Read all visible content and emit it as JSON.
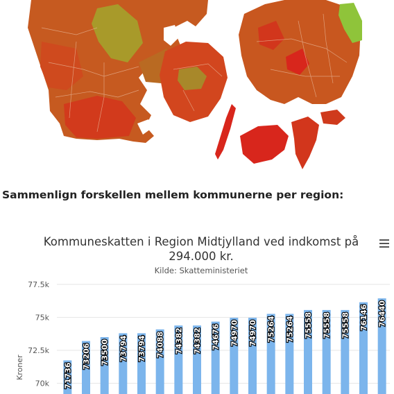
{
  "section": {
    "heading": "Sammenlign forskellen mellem kommunerne per region:"
  },
  "map": {
    "colors": {
      "red": "#d8261c",
      "orange_red": "#d2461e",
      "orange": "#c8571f",
      "brown": "#b96a22",
      "olive": "#a89a2a",
      "green": "#8fc43a",
      "water": "#ffffff"
    }
  },
  "chart_data": {
    "type": "bar",
    "title": "Kommuneskatten i Region Midtjylland ved indkomst på 294.000 kr.",
    "subtitle": "Kilde: Skatteministeriet",
    "ylabel": "Kroner",
    "ylim": [
      69500,
      78500
    ],
    "yticks": [
      "70k",
      "72.5k",
      "75k",
      "77.5k"
    ],
    "ytick_values": [
      70000,
      72500,
      75000,
      77500
    ],
    "values": [
      71736,
      73206,
      73500,
      73794,
      73794,
      74088,
      74382,
      74382,
      74676,
      74970,
      74970,
      75264,
      75264,
      75558,
      75558,
      75558,
      76146,
      76440
    ],
    "bar_color": "#7cb5ec",
    "grid": true,
    "menu_icon": "hamburger-menu-icon"
  }
}
